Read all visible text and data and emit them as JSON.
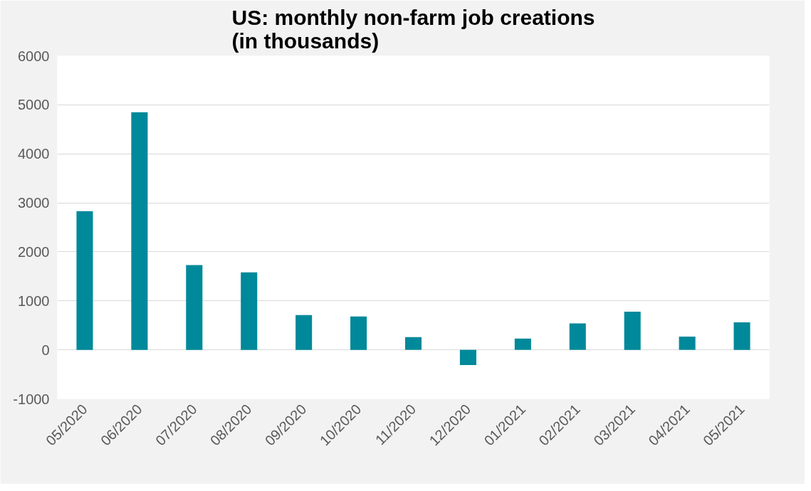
{
  "chart_data": {
    "type": "bar",
    "title": "US: monthly non-farm job creations\n(in thousands)",
    "categories": [
      "05/2020",
      "06/2020",
      "07/2020",
      "08/2020",
      "09/2020",
      "10/2020",
      "11/2020",
      "12/2020",
      "01/2021",
      "02/2021",
      "03/2021",
      "04/2021",
      "05/2021"
    ],
    "values": [
      2830,
      4850,
      1730,
      1580,
      710,
      680,
      260,
      -310,
      230,
      540,
      780,
      270,
      560
    ],
    "color": "#00899a",
    "ylim": [
      -1000,
      6000
    ],
    "yticks": [
      -1000,
      0,
      1000,
      2000,
      3000,
      4000,
      5000,
      6000
    ],
    "grid": "y"
  }
}
